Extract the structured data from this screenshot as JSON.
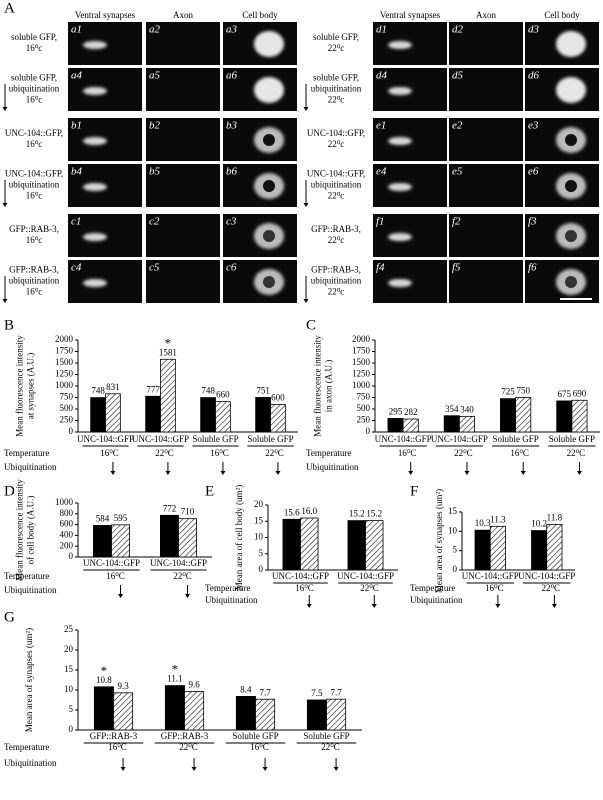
{
  "panel_a": {
    "label": "A",
    "column_headers": [
      "Ventral synapses",
      "Axon",
      "Cell body",
      "Ventral synapses",
      "Axon",
      "Cell body"
    ],
    "left_rows": [
      {
        "label": [
          "soluble GFP,",
          "16⁰c"
        ],
        "tiles": [
          "a1",
          "a2",
          "a3"
        ]
      },
      {
        "label": [
          "soluble GFP,",
          "ubiquitination",
          "16⁰c"
        ],
        "tiles": [
          "a4",
          "a5",
          "a6"
        ]
      },
      {
        "label": [
          "UNC-104::GFP,",
          "16⁰c"
        ],
        "tiles": [
          "b1",
          "b2",
          "b3"
        ]
      },
      {
        "label": [
          "UNC-104::GFP,",
          "ubiquitination",
          "16⁰c"
        ],
        "tiles": [
          "b4",
          "b5",
          "b6"
        ]
      },
      {
        "label": [
          "GFP::RAB-3,",
          "16⁰c"
        ],
        "tiles": [
          "c1",
          "c2",
          "c3"
        ]
      },
      {
        "label": [
          "GFP::RAB-3,",
          "ubiquitination",
          "16⁰c"
        ],
        "tiles": [
          "c4",
          "c5",
          "c6"
        ]
      }
    ],
    "right_rows": [
      {
        "label": [
          "soluble GFP,",
          "22⁰c"
        ],
        "tiles": [
          "d1",
          "d2",
          "d3"
        ]
      },
      {
        "label": [
          "soluble GFP,",
          "ubiquitination",
          "22⁰c"
        ],
        "tiles": [
          "d4",
          "d5",
          "d6"
        ]
      },
      {
        "label": [
          "UNC-104::GFP,",
          "22⁰c"
        ],
        "tiles": [
          "e1",
          "e2",
          "e3"
        ]
      },
      {
        "label": [
          "UNC-104::GFP,",
          "ubiquitination",
          "22⁰c"
        ],
        "tiles": [
          "e4",
          "e5",
          "e6"
        ]
      },
      {
        "label": [
          "GFP::RAB-3,",
          "22⁰c"
        ],
        "tiles": [
          "f1",
          "f2",
          "f3"
        ]
      },
      {
        "label": [
          "GFP::RAB-3,",
          "ubiquitination",
          "22⁰c"
        ],
        "tiles": [
          "f4",
          "f5",
          "f6"
        ]
      }
    ]
  },
  "chart_data": [
    {
      "type": "bar",
      "panel": "B",
      "ylabel": [
        "Mean fluorescence intensity",
        "at synapses (A.U.)"
      ],
      "categories": [
        "UNC-104::GFP",
        "UNC-104::GFP",
        "Soluble GFP",
        "Soluble GFP"
      ],
      "temperature_title": "Temperature",
      "temperature": [
        "16⁰C",
        "22⁰C",
        "16⁰C",
        "22⁰C"
      ],
      "ubiquitination_title": "Ubiquitination",
      "series": [
        {
          "color": "#000000",
          "values": [
            748,
            777,
            748,
            751
          ]
        },
        {
          "color": "#000000",
          "hatch": true,
          "values": [
            831,
            1581,
            660,
            600
          ],
          "significance": [
            null,
            "*",
            null,
            null
          ]
        }
      ],
      "ylim": [
        0,
        2000
      ],
      "yticks": [
        0,
        250,
        500,
        750,
        1000,
        1250,
        1500,
        1750,
        2000
      ]
    },
    {
      "type": "bar",
      "panel": "C",
      "ylabel": [
        "Mean fluorescence intensity",
        "in axon (A.U.)"
      ],
      "categories": [
        "UNC-104::GFP",
        "UNC-104::GFP",
        "Soluble GFP",
        "Soluble GFP"
      ],
      "temperature_title": "Temperature",
      "temperature": [
        "16⁰C",
        "22⁰C",
        "16⁰C",
        "22⁰C"
      ],
      "ubiquitination_title": "Ubiquitination",
      "series": [
        {
          "color": "#000000",
          "values": [
            295,
            354,
            725,
            675
          ]
        },
        {
          "color": "#000000",
          "hatch": true,
          "values": [
            282,
            340,
            750,
            690
          ]
        }
      ],
      "ylim": [
        0,
        2000
      ],
      "yticks": [
        0,
        250,
        500,
        750,
        1000,
        1250,
        1500,
        1750,
        2000
      ]
    },
    {
      "type": "bar",
      "panel": "D",
      "ylabel": [
        "Mean fluorescence intensity",
        "of cell body (A.U.)"
      ],
      "categories": [
        "UNC-104::GFP",
        "UNC-104::GFP"
      ],
      "temperature_title": "Temperature",
      "temperature": [
        "16⁰C",
        "22⁰C"
      ],
      "ubiquitination_title": "Ubiquitination",
      "series": [
        {
          "color": "#000000",
          "values": [
            584,
            772
          ]
        },
        {
          "color": "#000000",
          "hatch": true,
          "values": [
            595,
            710
          ]
        }
      ],
      "ylim": [
        0,
        1000
      ],
      "yticks": [
        0,
        200,
        400,
        600,
        800,
        1000
      ]
    },
    {
      "type": "bar",
      "panel": "E",
      "ylabel": [
        "Mean area of cell body (um²)"
      ],
      "categories": [
        "UNC-104::GFP",
        "UNC-104::GFP"
      ],
      "temperature_title": "Temperature",
      "temperature": [
        "16⁰C",
        "22⁰C"
      ],
      "ubiquitination_title": "Ubiquitination",
      "series": [
        {
          "color": "#000000",
          "values": [
            15.6,
            15.2
          ]
        },
        {
          "color": "#000000",
          "hatch": true,
          "values": [
            16.0,
            15.2
          ],
          "value_labels": [
            "16.0",
            "15.2"
          ]
        }
      ],
      "ylim": [
        0,
        20
      ],
      "yticks": [
        0,
        5,
        10,
        15,
        20
      ]
    },
    {
      "type": "bar",
      "panel": "F",
      "ylabel": [
        "Mean area of synapses (um²)"
      ],
      "categories": [
        "UNC-104::GFP",
        "UNC-104::GFP"
      ],
      "temperature_title": "Temperature",
      "temperature": [
        "16⁰C",
        "22⁰C"
      ],
      "ubiquitination_title": "Ubiquitination",
      "series": [
        {
          "color": "#000000",
          "values": [
            10.3,
            10.2
          ]
        },
        {
          "color": "#000000",
          "hatch": true,
          "values": [
            11.3,
            11.8
          ]
        }
      ],
      "ylim": [
        0,
        15
      ],
      "yticks": [
        0,
        5,
        10,
        15
      ]
    },
    {
      "type": "bar",
      "panel": "G",
      "ylabel": [
        "Mean area of synapses (um²)"
      ],
      "categories": [
        "GFP::RAB-3",
        "GFP::RAB-3",
        "Soluble GFP",
        "Soluble GFP"
      ],
      "temperature_title": "Temperature",
      "temperature": [
        "16⁰C",
        "22⁰C",
        "16⁰C",
        "22⁰C"
      ],
      "ubiquitination_title": "Ubiquitination",
      "series": [
        {
          "color": "#000000",
          "values": [
            10.8,
            11.1,
            8.4,
            7.5
          ],
          "significance": [
            "*",
            "*",
            null,
            null
          ]
        },
        {
          "color": "#000000",
          "hatch": true,
          "values": [
            9.3,
            9.6,
            7.7,
            7.7
          ]
        }
      ],
      "ylim": [
        0,
        25
      ],
      "yticks": [
        0,
        5,
        10,
        15,
        20,
        25
      ]
    }
  ]
}
